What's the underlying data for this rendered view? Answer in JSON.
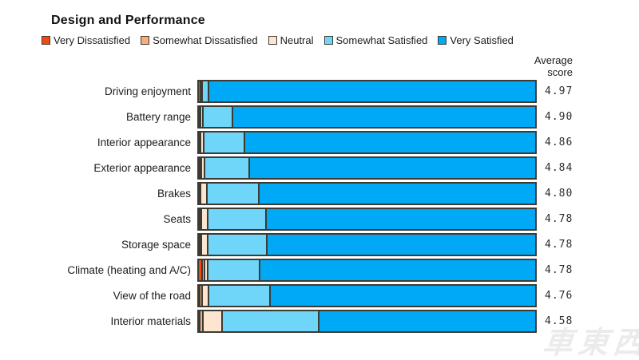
{
  "title": "Design and Performance",
  "average_score_header": "Average\nscore",
  "watermark_text": "車東西",
  "colors": {
    "very_dissatisfied": "#f1490f",
    "somewhat_dissatisfied": "#f6ae7d",
    "neutral": "#fde5d0",
    "somewhat_satisfied": "#6fd5f9",
    "very_satisfied": "#00a9f5",
    "segment_border": "#3c3b33",
    "text": "#1c1c1c"
  },
  "legend": {
    "items": [
      {
        "label": "Very Dissatisfied",
        "color": "#f1490f"
      },
      {
        "label": "Somewhat Dissatisfied",
        "color": "#f6ae7d"
      },
      {
        "label": "Neutral",
        "color": "#fde5d0"
      },
      {
        "label": "Somewhat Satisfied",
        "color": "#6fd5f9"
      },
      {
        "label": "Very Satisfied",
        "color": "#00a9f5"
      }
    ]
  },
  "chart_data": {
    "type": "bar",
    "variant": "horizontal_stacked_percent",
    "title": "Design and Performance",
    "xlabel": "",
    "ylabel": "",
    "xlim": [
      0,
      100
    ],
    "grid": false,
    "legend_position": "top",
    "series_names": [
      "Very Dissatisfied",
      "Somewhat Dissatisfied",
      "Neutral",
      "Somewhat Satisfied",
      "Very Satisfied"
    ],
    "series_colors": [
      "#f1490f",
      "#f6ae7d",
      "#fde5d0",
      "#6fd5f9",
      "#00a9f5"
    ],
    "categories": [
      "Driving enjoyment",
      "Battery range",
      "Interior appearance",
      "Exterior appearance",
      "Brakes",
      "Seats",
      "Storage space",
      "Climate (heating and A/C)",
      "View of the road",
      "Interior materials"
    ],
    "values_pct": [
      [
        0.7,
        0.2,
        0.4,
        1.7,
        97.0
      ],
      [
        0.5,
        0.3,
        0.6,
        8.7,
        89.9
      ],
      [
        0.5,
        0.3,
        0.8,
        12.0,
        86.4
      ],
      [
        0.5,
        0.5,
        1.0,
        13.2,
        84.8
      ],
      [
        0.4,
        0.3,
        1.9,
        15.3,
        82.1
      ],
      [
        0.5,
        0.4,
        2.0,
        17.2,
        79.9
      ],
      [
        0.5,
        0.5,
        1.9,
        17.4,
        79.7
      ],
      [
        1.2,
        0.7,
        0.9,
        15.3,
        81.9
      ],
      [
        0.5,
        0.7,
        1.9,
        18.1,
        78.8
      ],
      [
        0.5,
        0.9,
        5.6,
        28.7,
        64.3
      ]
    ],
    "average_scores": [
      "4.97",
      "4.90",
      "4.86",
      "4.84",
      "4.80",
      "4.78",
      "4.78",
      "4.78",
      "4.76",
      "4.58"
    ]
  }
}
